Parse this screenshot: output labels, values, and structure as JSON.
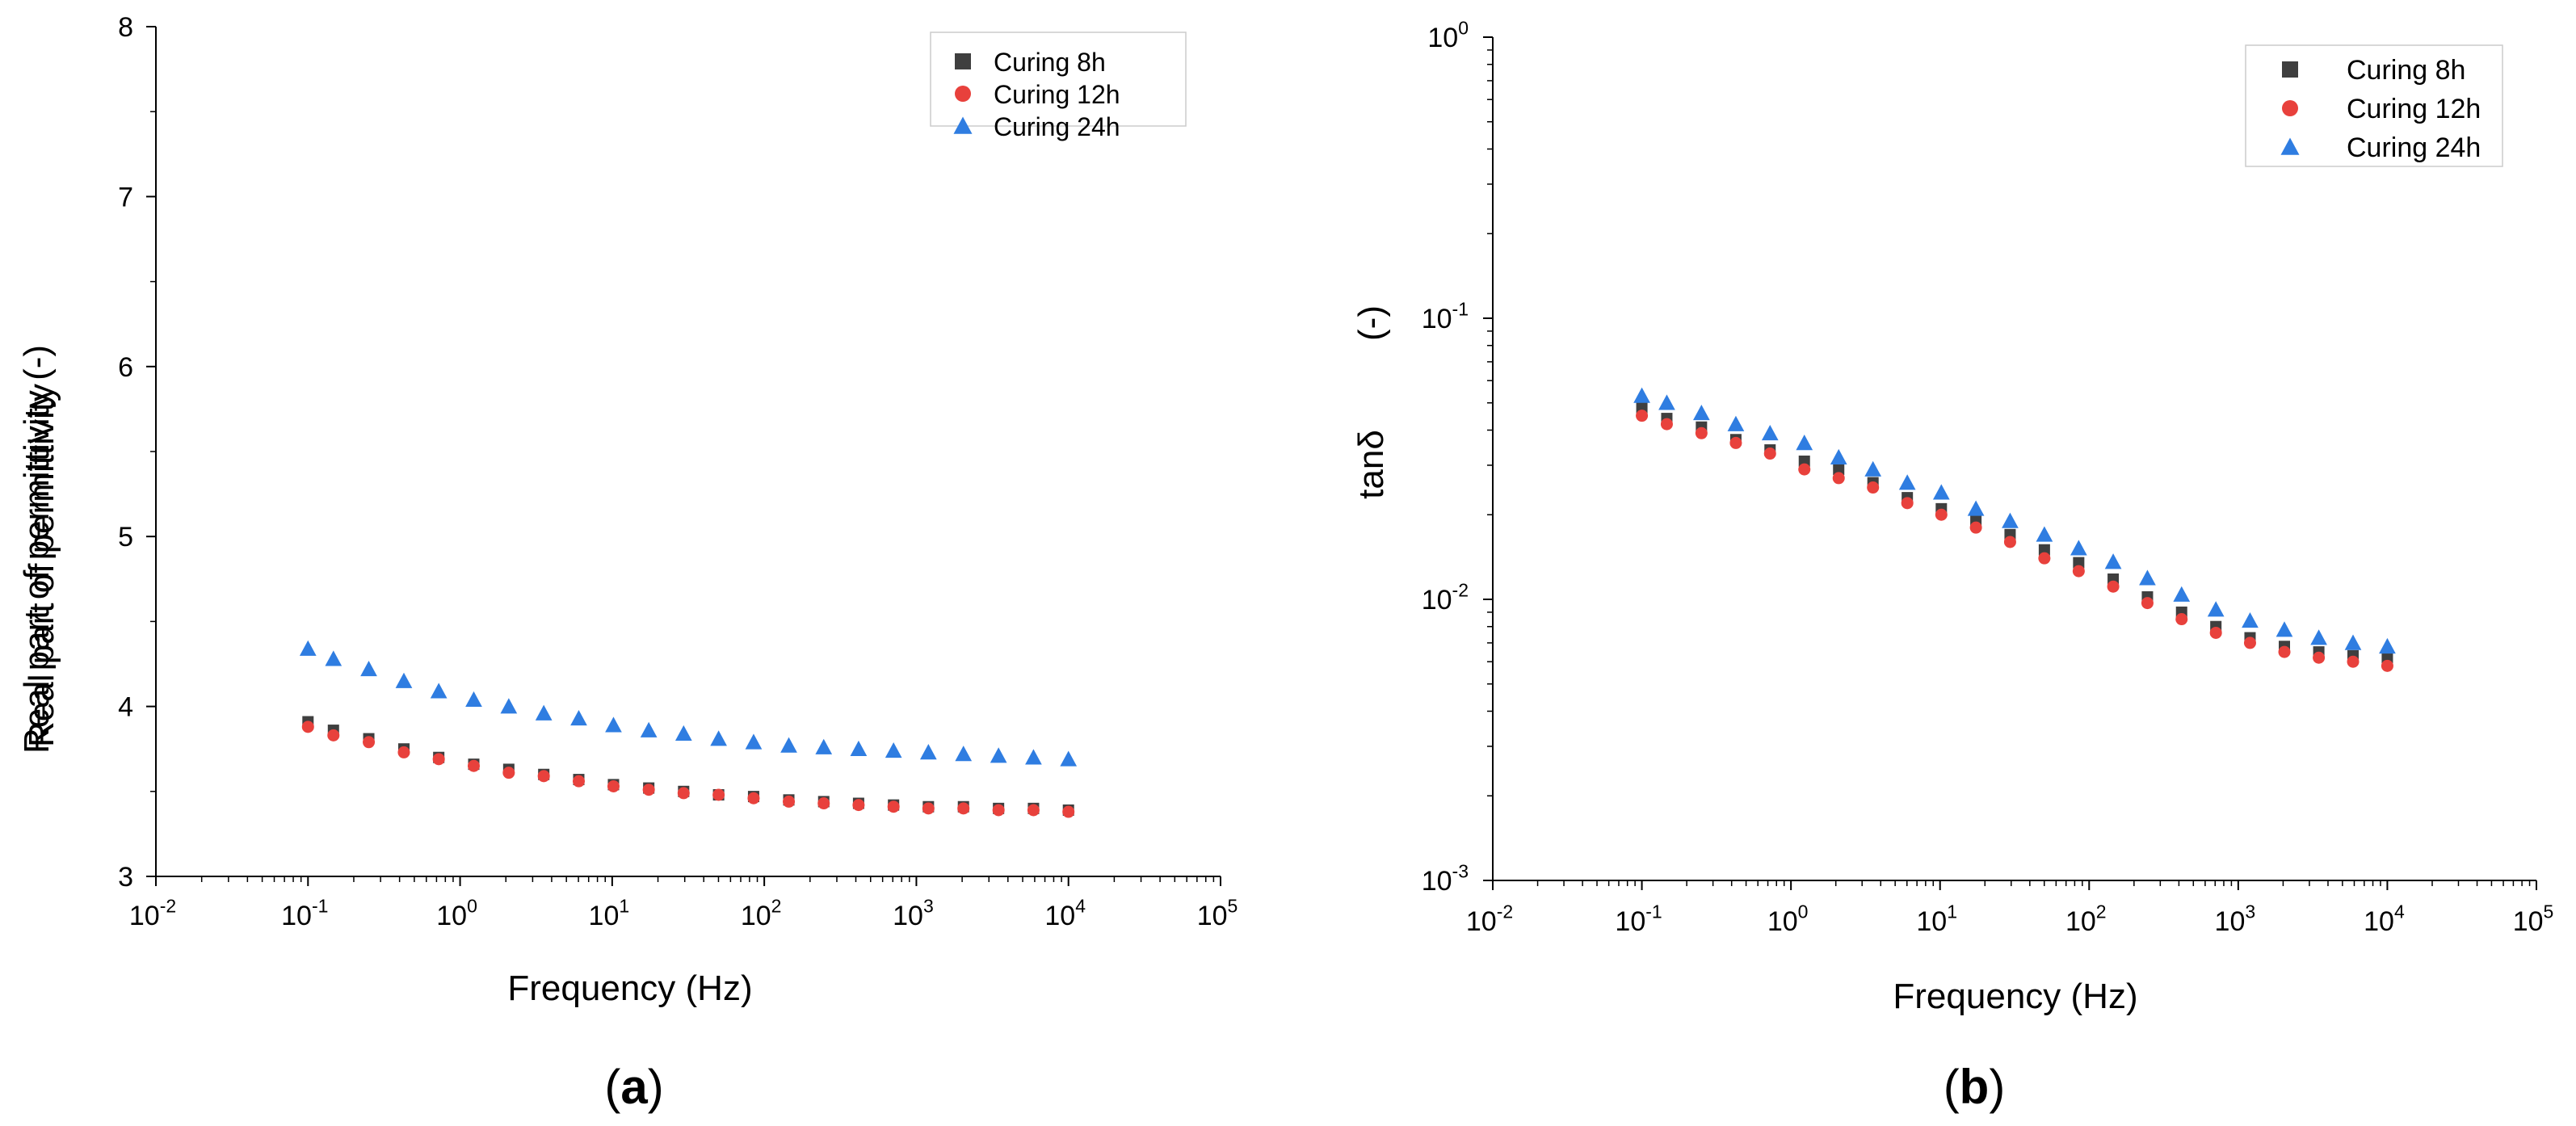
{
  "colors": {
    "curing_8h": "#3f3f3f",
    "curing_12h": "#e8413c",
    "curing_24h": "#2f7de1",
    "axis": "#000000"
  },
  "panels": {
    "a": {
      "label_open": "(",
      "label_letter": "a",
      "label_close": ")"
    },
    "b": {
      "label_open": "(",
      "label_letter": "b",
      "label_close": ")"
    }
  },
  "chart_data": [
    {
      "type": "scatter",
      "id": "a",
      "title": "",
      "xlabel": "Frequency (Hz)",
      "ylabel": "Real part of permittivity  (-)",
      "ylabel_ghost": "Real part of permittivity",
      "xscale": "log",
      "yscale": "linear",
      "xlim": [
        0.01,
        100000
      ],
      "ylim": [
        3,
        8
      ],
      "x_ticks": [
        {
          "value": 0.01,
          "base": "10",
          "exp": "-2"
        },
        {
          "value": 0.1,
          "base": "10",
          "exp": "-1"
        },
        {
          "value": 1,
          "base": "10",
          "exp": "0"
        },
        {
          "value": 10,
          "base": "10",
          "exp": "1"
        },
        {
          "value": 100,
          "base": "10",
          "exp": "2"
        },
        {
          "value": 1000,
          "base": "10",
          "exp": "3"
        },
        {
          "value": 10000,
          "base": "10",
          "exp": "4"
        },
        {
          "value": 100000,
          "base": "10",
          "exp": "5"
        }
      ],
      "y_ticks": [
        {
          "value": 3,
          "label": "3"
        },
        {
          "value": 4,
          "label": "4"
        },
        {
          "value": 5,
          "label": "5"
        },
        {
          "value": 6,
          "label": "6"
        },
        {
          "value": 7,
          "label": "7"
        },
        {
          "value": 8,
          "label": "8"
        }
      ],
      "legend_position": "top-right",
      "x": [
        0.1,
        0.147,
        0.251,
        0.427,
        0.724,
        1.23,
        2.09,
        3.55,
        6.03,
        10.2,
        17.4,
        29.5,
        50.1,
        85.1,
        145,
        246,
        417,
        708,
        1200,
        2040,
        3470,
        5890,
        10000
      ],
      "series": [
        {
          "name": "Curing 8h",
          "marker": "square",
          "color_key": "curing_8h",
          "values": [
            3.91,
            3.86,
            3.81,
            3.75,
            3.7,
            3.66,
            3.63,
            3.6,
            3.57,
            3.54,
            3.52,
            3.5,
            3.48,
            3.47,
            3.45,
            3.44,
            3.43,
            3.42,
            3.41,
            3.41,
            3.4,
            3.4,
            3.39
          ]
        },
        {
          "name": "Curing 12h",
          "marker": "circle",
          "color_key": "curing_12h",
          "values": [
            3.88,
            3.83,
            3.79,
            3.73,
            3.69,
            3.65,
            3.61,
            3.59,
            3.56,
            3.53,
            3.51,
            3.49,
            3.48,
            3.46,
            3.44,
            3.43,
            3.42,
            3.41,
            3.4,
            3.4,
            3.39,
            3.39,
            3.38
          ]
        },
        {
          "name": "Curing 24h",
          "marker": "triangle",
          "color_key": "curing_24h",
          "values": [
            4.34,
            4.28,
            4.22,
            4.15,
            4.09,
            4.04,
            4.0,
            3.96,
            3.93,
            3.89,
            3.86,
            3.84,
            3.81,
            3.79,
            3.77,
            3.76,
            3.75,
            3.74,
            3.73,
            3.72,
            3.71,
            3.7,
            3.69
          ]
        }
      ]
    },
    {
      "type": "scatter",
      "id": "b",
      "title": "",
      "xlabel": "Frequency (Hz)",
      "ylabel_main": "tanδ",
      "ylabel_unit": "(-)",
      "xscale": "log",
      "yscale": "log",
      "xlim": [
        0.01,
        100000
      ],
      "ylim": [
        0.001,
        1
      ],
      "x_ticks": [
        {
          "value": 0.01,
          "base": "10",
          "exp": "-2"
        },
        {
          "value": 0.1,
          "base": "10",
          "exp": "-1"
        },
        {
          "value": 1,
          "base": "10",
          "exp": "0"
        },
        {
          "value": 10,
          "base": "10",
          "exp": "1"
        },
        {
          "value": 100,
          "base": "10",
          "exp": "2"
        },
        {
          "value": 1000,
          "base": "10",
          "exp": "3"
        },
        {
          "value": 10000,
          "base": "10",
          "exp": "4"
        },
        {
          "value": 100000,
          "base": "10",
          "exp": "5"
        }
      ],
      "y_ticks": [
        {
          "value": 0.001,
          "base": "10",
          "exp": "-3"
        },
        {
          "value": 0.01,
          "base": "10",
          "exp": "-2"
        },
        {
          "value": 0.1,
          "base": "10",
          "exp": "-1"
        },
        {
          "value": 1,
          "base": "10",
          "exp": "0"
        }
      ],
      "legend_position": "top-right",
      "x": [
        0.1,
        0.147,
        0.251,
        0.427,
        0.724,
        1.23,
        2.09,
        3.55,
        6.03,
        10.2,
        17.4,
        29.5,
        50.1,
        85.1,
        145,
        246,
        417,
        708,
        1200,
        2040,
        3470,
        5890,
        10000
      ],
      "series": [
        {
          "name": "Curing 8h",
          "marker": "square",
          "color_key": "curing_8h",
          "values": [
            0.048,
            0.044,
            0.041,
            0.037,
            0.034,
            0.031,
            0.029,
            0.026,
            0.023,
            0.021,
            0.019,
            0.017,
            0.015,
            0.0135,
            0.0118,
            0.0102,
            0.009,
            0.008,
            0.0073,
            0.0068,
            0.0065,
            0.0063,
            0.0062
          ]
        },
        {
          "name": "Curing 12h",
          "marker": "circle",
          "color_key": "curing_12h",
          "values": [
            0.045,
            0.042,
            0.039,
            0.036,
            0.033,
            0.029,
            0.027,
            0.025,
            0.022,
            0.02,
            0.018,
            0.016,
            0.014,
            0.0126,
            0.0111,
            0.0097,
            0.0085,
            0.0076,
            0.007,
            0.0065,
            0.0062,
            0.006,
            0.0058
          ]
        },
        {
          "name": "Curing 24h",
          "marker": "triangle",
          "color_key": "curing_24h",
          "values": [
            0.053,
            0.05,
            0.046,
            0.042,
            0.039,
            0.036,
            0.032,
            0.029,
            0.026,
            0.024,
            0.021,
            0.019,
            0.017,
            0.0152,
            0.0136,
            0.0119,
            0.0104,
            0.0092,
            0.0084,
            0.0078,
            0.0073,
            0.007,
            0.0068
          ]
        }
      ]
    }
  ]
}
